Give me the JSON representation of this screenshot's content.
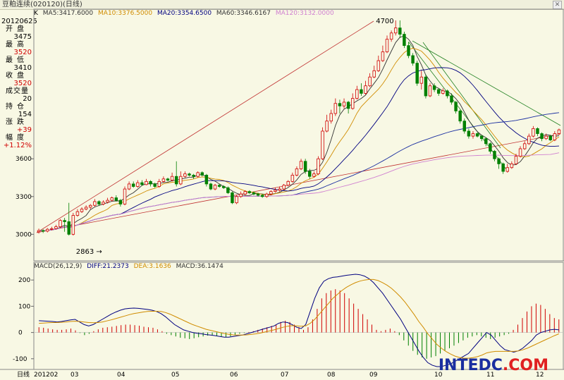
{
  "title": "豆粕连续(020120)(日线)",
  "period_label": "K",
  "ma": [
    {
      "label": "MA5:3417.6000",
      "color": "#333333"
    },
    {
      "label": "MA10:3376.5000",
      "color": "#d08c00"
    },
    {
      "label": "MA20:3354.6500",
      "color": "#333333"
    },
    {
      "label": "MA60:3346.6167",
      "color": "#333333"
    },
    {
      "label": "MA120:3132.0000",
      "color": "#d080d0"
    }
  ],
  "info": {
    "date": "20120625",
    "open_label": "开盘",
    "open": "3475",
    "high_label": "最高",
    "high": "3520",
    "low_label": "最低",
    "low": "3410",
    "close_label": "收盘",
    "close": "3520",
    "volume_label": "成交量",
    "volume": "20",
    "oi_label": "持仓",
    "oi": "154",
    "change_label": "涨跌",
    "change": "+39",
    "pct_label": "幅度",
    "pct": "+1.12%"
  },
  "macd": {
    "title": "MACD(26,12,9)",
    "diff": "DIFF:21.2373",
    "dea": "DEA:3.1636",
    "macd": "MACD:36.1474",
    "diff_color": "#000080",
    "dea_color": "#d08c00"
  },
  "watermark": {
    "part1": "INTEDC",
    "part2": ".COM",
    "color1": "#1a2ea0",
    "color2": "#e02020"
  },
  "bottom_label": "日线",
  "chart_data": {
    "type": "candlestick",
    "price_ticks": [
      3000,
      3300,
      3600
    ],
    "price_range": [
      2800,
      4750
    ],
    "macd_ticks": [
      -100,
      0,
      100,
      200
    ],
    "macd_range": [
      -130,
      230
    ],
    "annotations": [
      {
        "label": "4700",
        "value": 4700
      },
      {
        "label": "2863",
        "value": 2863
      }
    ],
    "x_labels": [
      "201202",
      "03",
      "04",
      "05",
      "06",
      "07",
      "08",
      "09",
      "10",
      "11",
      "12"
    ],
    "candles": [
      [
        3020,
        3030,
        3045,
        3005
      ],
      [
        3030,
        3025,
        3040,
        3010
      ],
      [
        3025,
        3040,
        3050,
        3015
      ],
      [
        3040,
        3045,
        3060,
        3030
      ],
      [
        3045,
        3060,
        3075,
        3040
      ],
      [
        3060,
        3110,
        3120,
        3050
      ],
      [
        3110,
        3100,
        3130,
        3020
      ],
      [
        3100,
        3000,
        3250,
        2990
      ],
      [
        3000,
        3150,
        3170,
        2990
      ],
      [
        3150,
        3180,
        3200,
        3140
      ],
      [
        3180,
        3200,
        3215,
        3170
      ],
      [
        3200,
        3215,
        3230,
        3190
      ],
      [
        3215,
        3230,
        3240,
        3200
      ],
      [
        3230,
        3260,
        3280,
        3220
      ],
      [
        3260,
        3240,
        3270,
        3225
      ],
      [
        3240,
        3255,
        3270,
        3230
      ],
      [
        3255,
        3270,
        3290,
        3245
      ],
      [
        3270,
        3290,
        3300,
        3260
      ],
      [
        3290,
        3270,
        3310,
        3260
      ],
      [
        3270,
        3240,
        3280,
        3220
      ],
      [
        3240,
        3360,
        3380,
        3230
      ],
      [
        3360,
        3400,
        3420,
        3350
      ],
      [
        3400,
        3380,
        3420,
        3370
      ],
      [
        3380,
        3410,
        3430,
        3370
      ],
      [
        3410,
        3395,
        3430,
        3385
      ],
      [
        3395,
        3420,
        3440,
        3390
      ],
      [
        3420,
        3400,
        3430,
        3380
      ],
      [
        3400,
        3380,
        3410,
        3370
      ],
      [
        3380,
        3420,
        3440,
        3370
      ],
      [
        3420,
        3440,
        3460,
        3410
      ],
      [
        3440,
        3430,
        3450,
        3420
      ],
      [
        3430,
        3460,
        3490,
        3420
      ],
      [
        3460,
        3400,
        3580,
        3380
      ],
      [
        3400,
        3460,
        3500,
        3390
      ],
      [
        3460,
        3480,
        3500,
        3450
      ],
      [
        3480,
        3470,
        3490,
        3460
      ],
      [
        3470,
        3460,
        3480,
        3440
      ],
      [
        3460,
        3490,
        3500,
        3450
      ],
      [
        3490,
        3470,
        3500,
        3460
      ],
      [
        3470,
        3400,
        3480,
        3380
      ],
      [
        3400,
        3360,
        3410,
        3350
      ],
      [
        3360,
        3390,
        3400,
        3350
      ],
      [
        3390,
        3380,
        3400,
        3370
      ],
      [
        3380,
        3370,
        3390,
        3360
      ],
      [
        3370,
        3330,
        3380,
        3320
      ],
      [
        3330,
        3250,
        3340,
        3240
      ],
      [
        3250,
        3300,
        3310,
        3240
      ],
      [
        3300,
        3320,
        3340,
        3290
      ],
      [
        3320,
        3340,
        3350,
        3310
      ],
      [
        3340,
        3330,
        3350,
        3320
      ],
      [
        3330,
        3320,
        3340,
        3310
      ],
      [
        3320,
        3310,
        3330,
        3300
      ],
      [
        3310,
        3300,
        3320,
        3290
      ],
      [
        3300,
        3320,
        3330,
        3290
      ],
      [
        3320,
        3340,
        3350,
        3310
      ],
      [
        3340,
        3350,
        3370,
        3330
      ],
      [
        3350,
        3360,
        3380,
        3340
      ],
      [
        3360,
        3390,
        3400,
        3350
      ],
      [
        3390,
        3420,
        3430,
        3380
      ],
      [
        3420,
        3470,
        3490,
        3410
      ],
      [
        3470,
        3520,
        3540,
        3460
      ],
      [
        3520,
        3580,
        3600,
        3510
      ],
      [
        3580,
        3500,
        3600,
        3480
      ],
      [
        3500,
        3460,
        3520,
        3440
      ],
      [
        3460,
        3480,
        3500,
        3450
      ],
      [
        3480,
        3600,
        3620,
        3470
      ],
      [
        3600,
        3820,
        3850,
        3590
      ],
      [
        3820,
        3900,
        3950,
        3810
      ],
      [
        3900,
        3960,
        3990,
        3880
      ],
      [
        3960,
        4040,
        4080,
        3940
      ],
      [
        4040,
        4020,
        4070,
        3960
      ],
      [
        4020,
        4050,
        4080,
        4000
      ],
      [
        4050,
        4000,
        4060,
        3960
      ],
      [
        4000,
        4080,
        4120,
        3990
      ],
      [
        4080,
        4150,
        4180,
        4070
      ],
      [
        4150,
        4120,
        4200,
        4100
      ],
      [
        4120,
        4180,
        4220,
        4110
      ],
      [
        4180,
        4250,
        4280,
        4170
      ],
      [
        4250,
        4300,
        4340,
        4240
      ],
      [
        4300,
        4380,
        4420,
        4290
      ],
      [
        4380,
        4450,
        4500,
        4370
      ],
      [
        4450,
        4550,
        4580,
        4440
      ],
      [
        4550,
        4600,
        4620,
        4530
      ],
      [
        4600,
        4640,
        4700,
        4580
      ],
      [
        4640,
        4590,
        4700,
        4560
      ],
      [
        4590,
        4500,
        4610,
        4480
      ],
      [
        4500,
        4420,
        4530,
        4400
      ],
      [
        4420,
        4360,
        4440,
        4340
      ],
      [
        4360,
        4200,
        4380,
        4180
      ],
      [
        4200,
        4250,
        4300,
        4150
      ],
      [
        4250,
        4100,
        4270,
        4080
      ],
      [
        4100,
        4180,
        4200,
        4090
      ],
      [
        4180,
        4150,
        4200,
        4130
      ],
      [
        4150,
        4120,
        4160,
        4100
      ],
      [
        4120,
        4140,
        4160,
        4110
      ],
      [
        4140,
        4100,
        4150,
        4080
      ],
      [
        4100,
        4050,
        4120,
        4030
      ],
      [
        4050,
        3980,
        4060,
        3960
      ],
      [
        3980,
        3900,
        3990,
        3880
      ],
      [
        3900,
        3820,
        3920,
        3800
      ],
      [
        3820,
        3780,
        3840,
        3760
      ],
      [
        3780,
        3800,
        3820,
        3760
      ],
      [
        3800,
        3780,
        3810,
        3770
      ],
      [
        3780,
        3760,
        3790,
        3740
      ],
      [
        3760,
        3720,
        3770,
        3700
      ],
      [
        3720,
        3660,
        3730,
        3640
      ],
      [
        3660,
        3600,
        3670,
        3580
      ],
      [
        3600,
        3560,
        3610,
        3520
      ],
      [
        3560,
        3500,
        3570,
        3480
      ],
      [
        3500,
        3530,
        3560,
        3490
      ],
      [
        3530,
        3560,
        3580,
        3520
      ],
      [
        3560,
        3620,
        3640,
        3550
      ],
      [
        3620,
        3680,
        3700,
        3610
      ],
      [
        3680,
        3720,
        3740,
        3670
      ],
      [
        3720,
        3780,
        3800,
        3710
      ],
      [
        3780,
        3840,
        3860,
        3770
      ],
      [
        3840,
        3800,
        3850,
        3780
      ],
      [
        3800,
        3760,
        3810,
        3740
      ],
      [
        3760,
        3780,
        3800,
        3750
      ],
      [
        3780,
        3750,
        3790,
        3740
      ],
      [
        3750,
        3800,
        3820,
        3740
      ],
      [
        3800,
        3830,
        3840,
        3790
      ]
    ],
    "macd_hist": [
      20,
      18,
      15,
      12,
      10,
      10,
      12,
      15,
      8,
      -2,
      -10,
      -5,
      5,
      12,
      18,
      20,
      22,
      25,
      28,
      30,
      30,
      28,
      26,
      22,
      20,
      18,
      12,
      5,
      -5,
      -10,
      -15,
      -20,
      -22,
      -25,
      -22,
      -18,
      -15,
      -12,
      -10,
      -12,
      -15,
      -18,
      -15,
      -10,
      -5,
      -2,
      2,
      5,
      10,
      15,
      20,
      25,
      30,
      40,
      45,
      40,
      30,
      20,
      10,
      20,
      50,
      90,
      130,
      150,
      160,
      165,
      160,
      150,
      130,
      110,
      90,
      70,
      50,
      30,
      10,
      5,
      10,
      15,
      5,
      -10,
      -30,
      -50,
      -70,
      -85,
      -95,
      -100,
      -95,
      -90,
      -80,
      -70,
      -60,
      -50,
      -40,
      -30,
      -20,
      -15,
      -10,
      -15,
      -20,
      -25,
      -20,
      -15,
      -10,
      -5,
      10,
      30,
      55,
      80,
      100,
      110,
      105,
      90,
      70,
      55,
      50
    ],
    "macd_diff": [
      45,
      44,
      43,
      42,
      40,
      42,
      45,
      48,
      50,
      40,
      30,
      25,
      30,
      40,
      50,
      60,
      70,
      78,
      85,
      90,
      92,
      93,
      92,
      90,
      88,
      85,
      80,
      72,
      60,
      45,
      30,
      20,
      10,
      5,
      0,
      -3,
      -5,
      -8,
      -10,
      -12,
      -15,
      -18,
      -18,
      -15,
      -12,
      -10,
      -5,
      0,
      5,
      10,
      15,
      20,
      25,
      35,
      40,
      38,
      30,
      20,
      15,
      30,
      80,
      130,
      170,
      195,
      205,
      210,
      212,
      215,
      218,
      220,
      222,
      220,
      215,
      205,
      190,
      170,
      150,
      125,
      100,
      75,
      50,
      20,
      -10,
      -40,
      -70,
      -95,
      -115,
      -125,
      -130,
      -130,
      -125,
      -120,
      -110,
      -100,
      -90,
      -80,
      -60,
      -40,
      -20,
      0,
      -10,
      -30,
      -50,
      -65,
      -70,
      -75,
      -70,
      -60,
      -45,
      -30,
      -10,
      0,
      5,
      10,
      12,
      10
    ],
    "macd_dea": [
      35,
      36,
      37,
      38,
      38,
      39,
      40,
      42,
      43,
      42,
      40,
      38,
      37,
      38,
      40,
      44,
      48,
      53,
      58,
      63,
      68,
      72,
      75,
      78,
      80,
      81,
      81,
      80,
      76,
      70,
      62,
      54,
      46,
      38,
      30,
      24,
      18,
      12,
      8,
      4,
      0,
      -4,
      -7,
      -9,
      -10,
      -10,
      -9,
      -7,
      -5,
      -2,
      2,
      6,
      10,
      15,
      20,
      24,
      26,
      25,
      24,
      25,
      35,
      50,
      70,
      90,
      110,
      130,
      145,
      160,
      172,
      182,
      190,
      196,
      200,
      202,
      202,
      198,
      190,
      180,
      168,
      152,
      135,
      115,
      92,
      68,
      42,
      20,
      -5,
      -25,
      -45,
      -60,
      -72,
      -82,
      -90,
      -95,
      -98,
      -98,
      -96,
      -92,
      -86,
      -78,
      -74,
      -72,
      -72,
      -72,
      -72,
      -72,
      -70,
      -66,
      -60,
      -52,
      -44,
      -36,
      -28,
      -20,
      -12,
      -5
    ]
  }
}
